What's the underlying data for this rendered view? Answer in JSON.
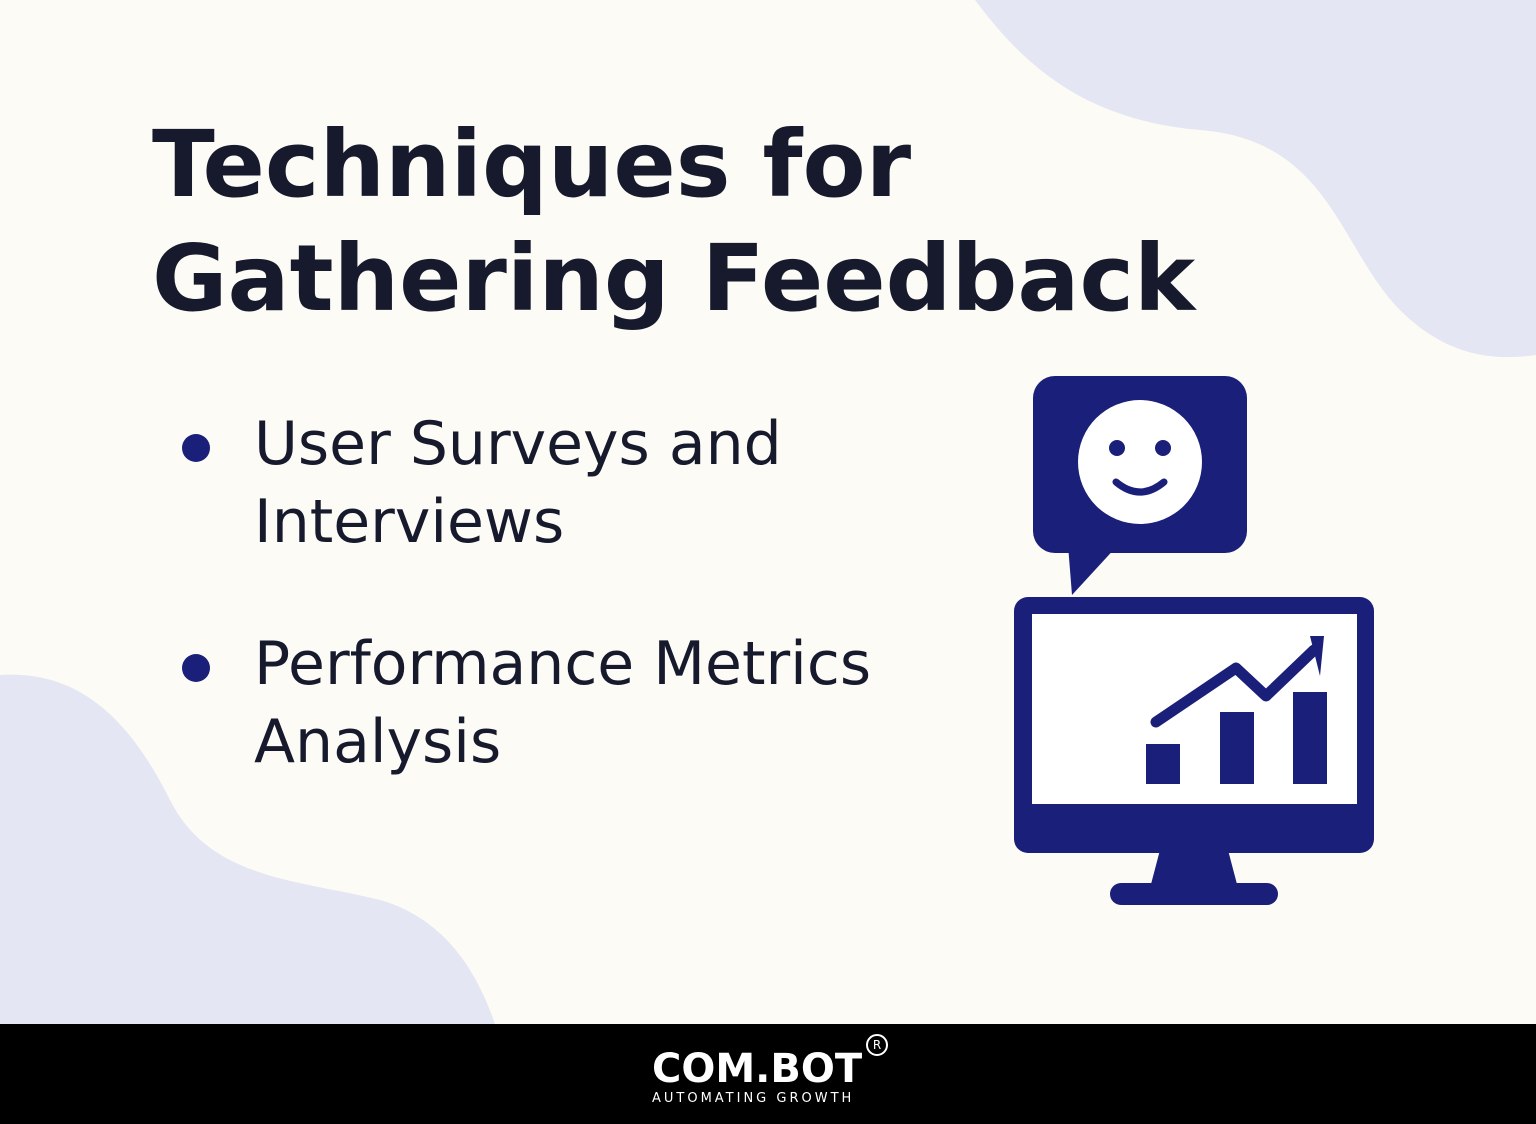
{
  "header": {
    "title_lines": [
      "Techniques for",
      "Gathering Feedback"
    ]
  },
  "list": {
    "items": [
      [
        "User Surveys and",
        "Interviews"
      ],
      [
        "Performance Metrics",
        "Analysis"
      ]
    ]
  },
  "footer": {
    "brand": "COM.BOT",
    "registered": "R",
    "tagline": "AUTOMATING GROWTH"
  }
}
